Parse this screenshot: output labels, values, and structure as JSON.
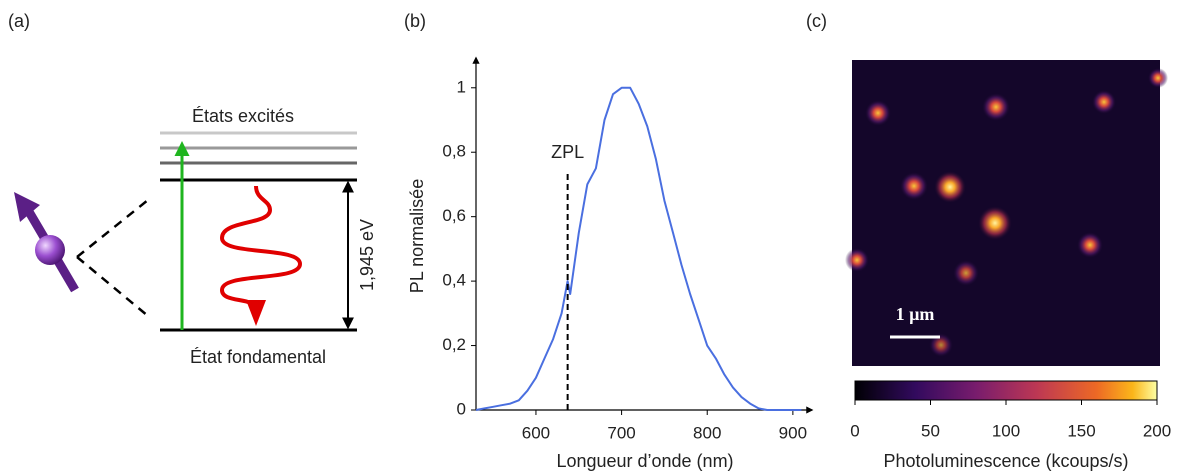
{
  "panel_a": {
    "label": "(a)",
    "excited": "États excités",
    "energy": "1,945 eV",
    "ground": "État fondamental"
  },
  "chart_data": {
    "type": "line",
    "label": "(b)",
    "x_label": "Longueur d’onde (nm)",
    "y_label": "PL normalisée",
    "color": "#4a6fe0",
    "x": [
      530,
      540,
      550,
      560,
      570,
      580,
      590,
      600,
      610,
      620,
      630,
      637,
      640,
      650,
      660,
      670,
      680,
      690,
      700,
      710,
      720,
      730,
      740,
      750,
      760,
      770,
      780,
      790,
      800,
      810,
      820,
      830,
      840,
      850,
      860,
      870,
      880,
      890,
      900,
      910
    ],
    "values": [
      0.0,
      0.005,
      0.01,
      0.015,
      0.02,
      0.03,
      0.06,
      0.1,
      0.16,
      0.22,
      0.3,
      0.4,
      0.36,
      0.55,
      0.7,
      0.75,
      0.9,
      0.98,
      1.0,
      1.0,
      0.95,
      0.88,
      0.78,
      0.65,
      0.55,
      0.45,
      0.36,
      0.28,
      0.2,
      0.16,
      0.11,
      0.07,
      0.04,
      0.02,
      0.005,
      0.0,
      0.0,
      0.0,
      0.0,
      0.0
    ],
    "xlim": [
      530,
      920
    ],
    "ylim": [
      0,
      1.08
    ],
    "xticks": [
      600,
      700,
      800,
      900
    ],
    "yticks": [
      0,
      {
        "value": 0.2,
        "label": "0,2"
      },
      {
        "value": 0.4,
        "label": "0,4"
      },
      {
        "value": 0.6,
        "label": "0,6"
      },
      {
        "value": 0.8,
        "label": "0,8"
      },
      1
    ],
    "annotation": {
      "text": "ZPL",
      "x": 637
    }
  },
  "panel_c": {
    "label": "(c)",
    "scale_bar": "1 µm",
    "colorbar": {
      "label": "Photoluminescence (kcoups/s)",
      "lim": [
        0,
        200
      ],
      "ticks": [
        0,
        50,
        100,
        150,
        200
      ]
    }
  }
}
